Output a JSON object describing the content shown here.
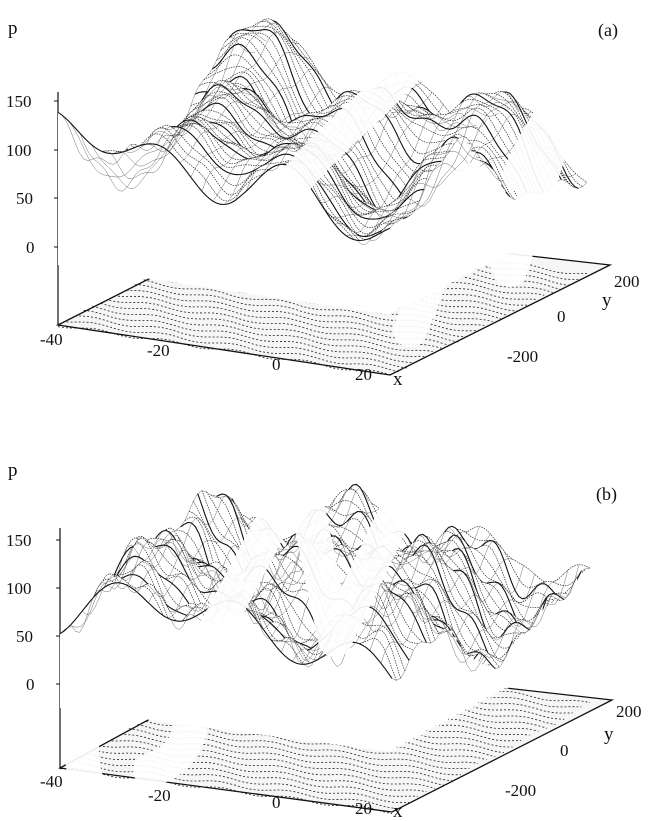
{
  "chart_data": [
    {
      "type": "surface",
      "panel_label": "(a)",
      "zlabel": "p",
      "xlabel": "x",
      "ylabel": "y",
      "z_ticks": [
        "150",
        "100",
        "50",
        "0"
      ],
      "x_ticks": [
        "-40",
        "-20",
        "0",
        "20"
      ],
      "y_ticks": [
        "200",
        "0",
        "-200"
      ],
      "z_range": [
        0,
        150
      ],
      "x_range": [
        -40,
        30
      ],
      "y_range": [
        -200,
        200
      ],
      "grid": false,
      "legend": "none"
    },
    {
      "type": "surface",
      "panel_label": "(b)",
      "zlabel": "p",
      "xlabel": "x",
      "ylabel": "y",
      "z_ticks": [
        "150",
        "100",
        "50",
        "0"
      ],
      "x_ticks": [
        "-40",
        "-20",
        "0",
        "20"
      ],
      "y_ticks": [
        "200",
        "0",
        "-200"
      ],
      "z_range": [
        0,
        150
      ],
      "x_range": [
        -40,
        30
      ],
      "y_range": [
        -200,
        200
      ],
      "grid": false,
      "legend": "none"
    }
  ],
  "colors": {
    "ink": "#111111",
    "paper": "#ffffff",
    "watermark": "#ffffff"
  }
}
